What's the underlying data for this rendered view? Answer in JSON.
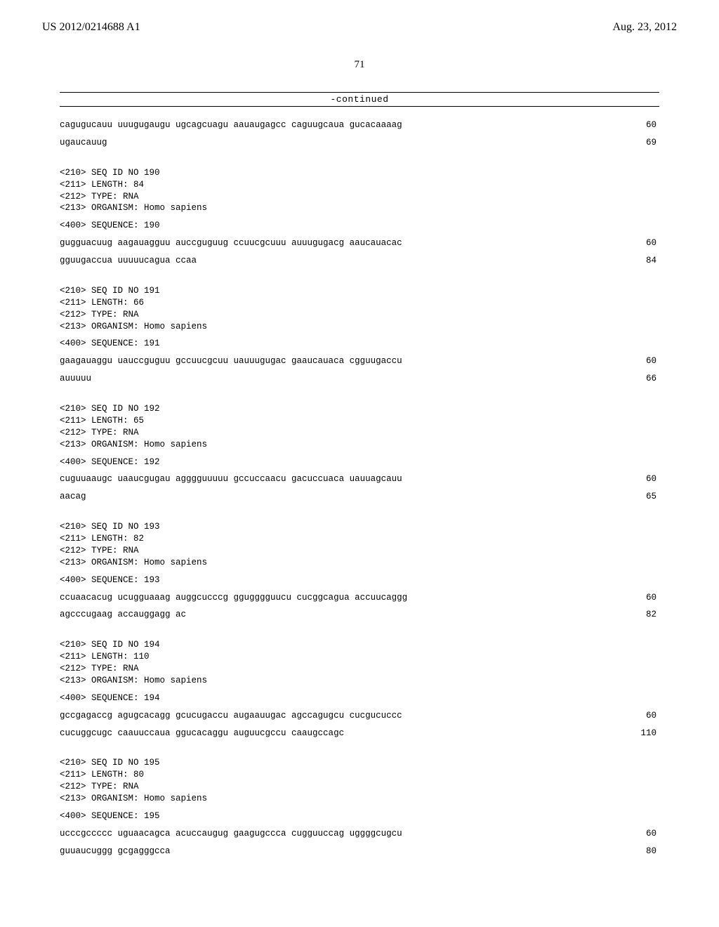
{
  "header": {
    "pub_number": "US 2012/0214688 A1",
    "pub_date": "Aug. 23, 2012"
  },
  "page_number": "71",
  "continued_label": "-continued",
  "entries": [
    {
      "seq_lines": [
        {
          "text": "cagugucauu uuugugaugu ugcagcuagu aauaugagcc caguugcaua gucacaaaag",
          "count": "60"
        },
        {
          "text": "ugaucauug",
          "count": "69"
        }
      ]
    },
    {
      "meta": [
        "<210> SEQ ID NO 190",
        "<211> LENGTH: 84",
        "<212> TYPE: RNA",
        "<213> ORGANISM: Homo sapiens"
      ],
      "sequence_header": "<400> SEQUENCE: 190",
      "seq_lines": [
        {
          "text": "gugguacuug aagauagguu auccguguug ccuucgcuuu auuugugacg aaucauacac",
          "count": "60"
        },
        {
          "text": "gguugaccua uuuuucagua ccaa",
          "count": "84"
        }
      ]
    },
    {
      "meta": [
        "<210> SEQ ID NO 191",
        "<211> LENGTH: 66",
        "<212> TYPE: RNA",
        "<213> ORGANISM: Homo sapiens"
      ],
      "sequence_header": "<400> SEQUENCE: 191",
      "seq_lines": [
        {
          "text": "gaagauaggu uauccguguu gccuucgcuu uauuugugac gaaucauaca cgguugaccu",
          "count": "60"
        },
        {
          "text": "auuuuu",
          "count": "66"
        }
      ]
    },
    {
      "meta": [
        "<210> SEQ ID NO 192",
        "<211> LENGTH: 65",
        "<212> TYPE: RNA",
        "<213> ORGANISM: Homo sapiens"
      ],
      "sequence_header": "<400> SEQUENCE: 192",
      "seq_lines": [
        {
          "text": "cuguuaaugc uaaucgugau agggguuuuu gccuccaacu gacuccuaca uauuagcauu",
          "count": "60"
        },
        {
          "text": "aacag",
          "count": "65"
        }
      ]
    },
    {
      "meta": [
        "<210> SEQ ID NO 193",
        "<211> LENGTH: 82",
        "<212> TYPE: RNA",
        "<213> ORGANISM: Homo sapiens"
      ],
      "sequence_header": "<400> SEQUENCE: 193",
      "seq_lines": [
        {
          "text": "ccuaacacug ucugguaaag auggcucccg ggugggguucu cucggcagua accuucaggg",
          "count": "60"
        },
        {
          "text": "agcccugaag accauggagg ac",
          "count": "82"
        }
      ]
    },
    {
      "meta": [
        "<210> SEQ ID NO 194",
        "<211> LENGTH: 110",
        "<212> TYPE: RNA",
        "<213> ORGANISM: Homo sapiens"
      ],
      "sequence_header": "<400> SEQUENCE: 194",
      "seq_lines": [
        {
          "text": "gccgagaccg agugcacagg gcucugaccu augaauugac agccagugcu cucgucuccc",
          "count": "60"
        },
        {
          "text": "cucuggcugc caauuccaua ggucacaggu auguucgccu caaugccagc",
          "count": "110"
        }
      ]
    },
    {
      "meta": [
        "<210> SEQ ID NO 195",
        "<211> LENGTH: 80",
        "<212> TYPE: RNA",
        "<213> ORGANISM: Homo sapiens"
      ],
      "sequence_header": "<400> SEQUENCE: 195",
      "seq_lines": [
        {
          "text": "ucccgccccc uguaacagca acuccaugug gaagugccca cugguuccag uggggcugcu",
          "count": "60"
        },
        {
          "text": "guuaucuggg gcgagggcca",
          "count": "80"
        }
      ]
    }
  ]
}
